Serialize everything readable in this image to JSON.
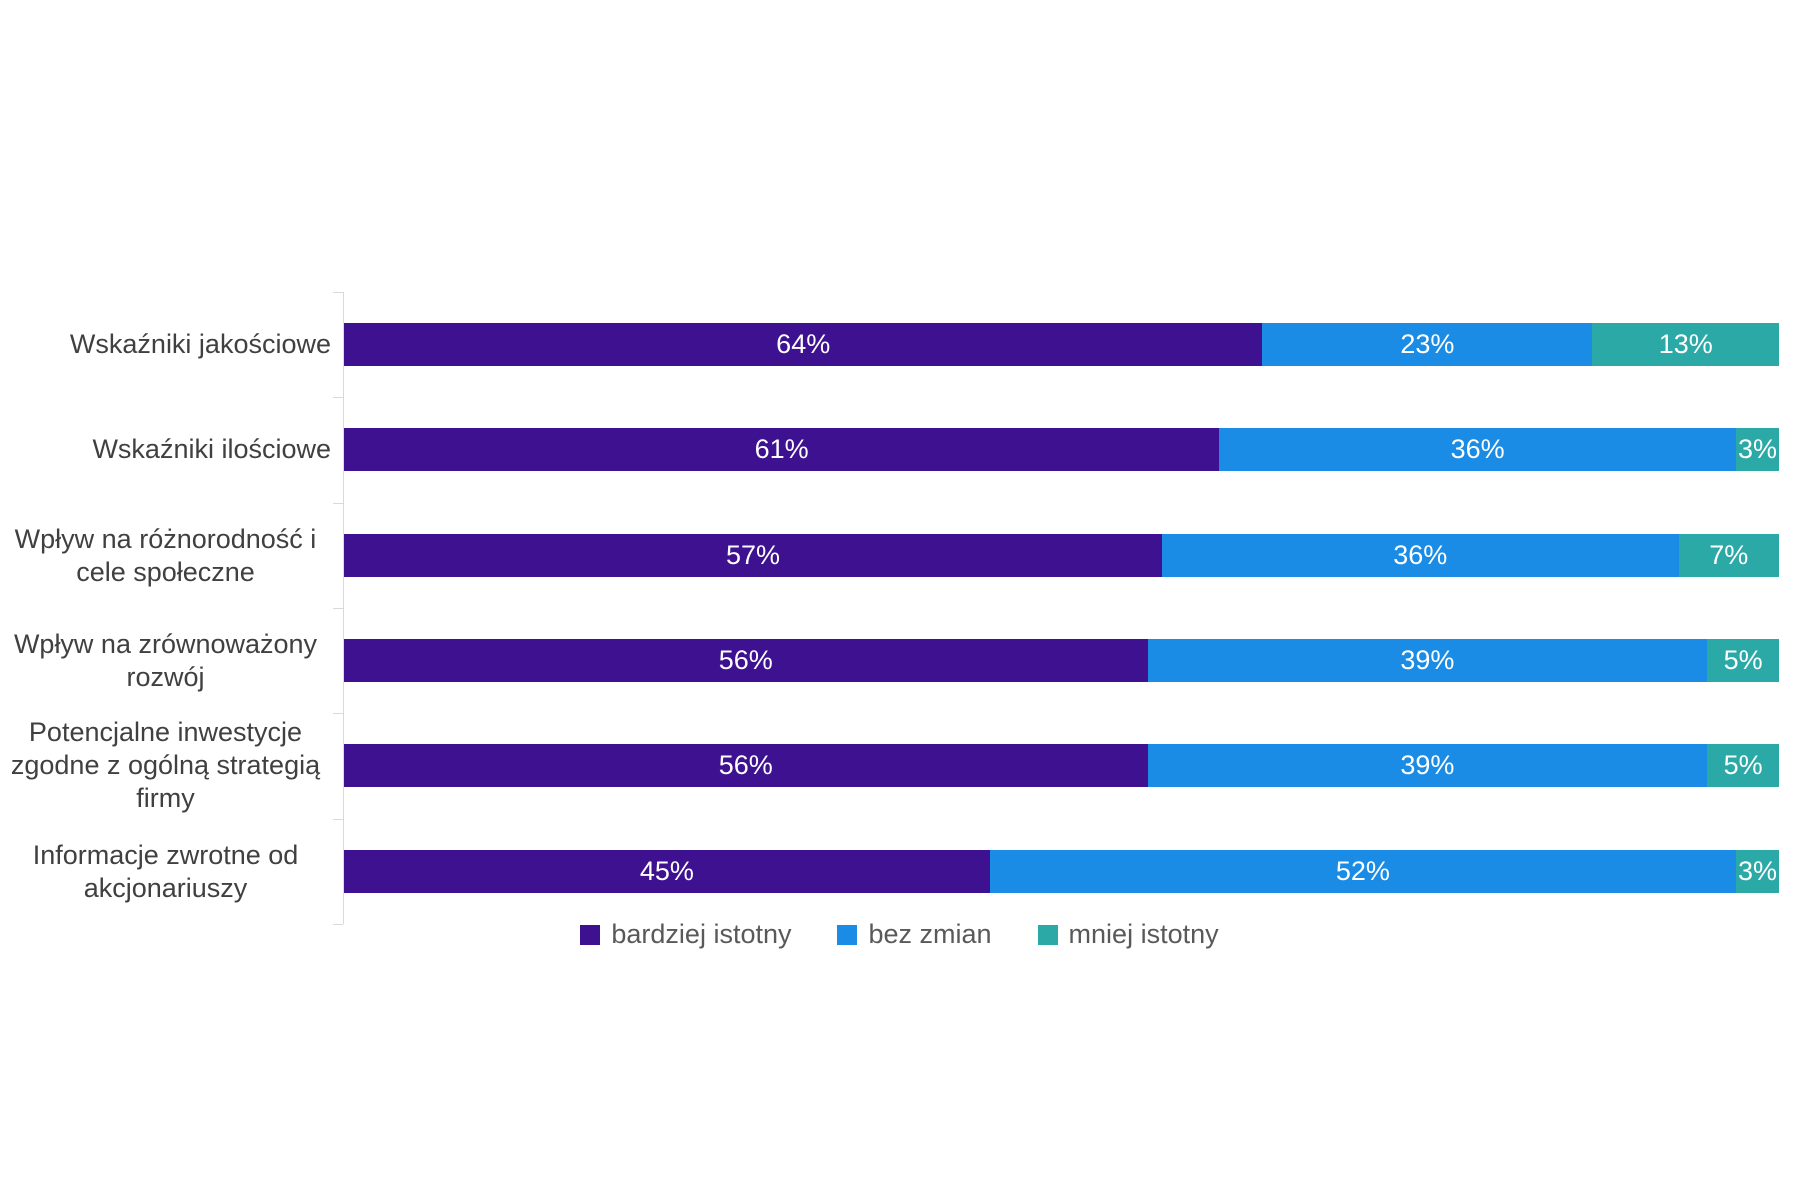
{
  "chart_data": {
    "type": "bar",
    "orientation": "horizontal",
    "stacked": true,
    "unit": "%",
    "xlim": [
      0,
      100
    ],
    "grid": false,
    "legend_position": "bottom-center",
    "value_labels": "inside-center-white",
    "categories": [
      "Wskaźniki jakościowe",
      "Wskaźniki ilościowe",
      "Wpływ na różnorodność i cele społeczne",
      "Wpływ na zrównoważony rozwój",
      "Potencjalne inwestycje zgodne z ogólną strategią firmy",
      "Informacje zwrotne od akcjonariuszy"
    ],
    "series": [
      {
        "name": "bardziej istotny",
        "color": "#3D1190",
        "values": [
          64,
          61,
          57,
          56,
          56,
          45
        ]
      },
      {
        "name": "bez zmian",
        "color": "#1A8CE5",
        "values": [
          23,
          36,
          36,
          39,
          39,
          52
        ]
      },
      {
        "name": "mniej istotny",
        "color": "#2BA9A6",
        "values": [
          13,
          3,
          7,
          5,
          5,
          3
        ]
      }
    ]
  },
  "styles": {
    "category_label_color": "#404040",
    "legend_text_color": "#595959",
    "axis_line_color": "#D9D9D9",
    "value_label_color": "#FFFFFF",
    "background": "#FFFFFF"
  }
}
